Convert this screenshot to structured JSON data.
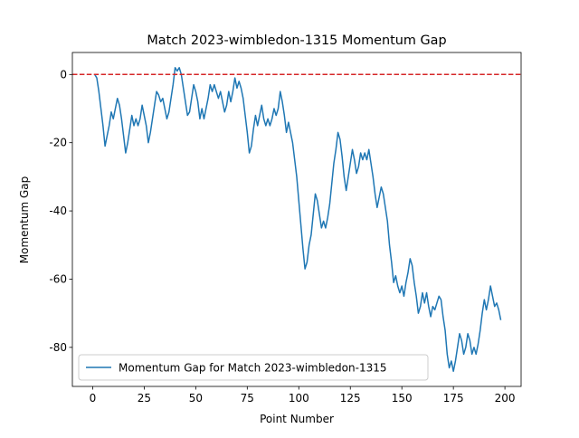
{
  "chart_data": {
    "type": "line",
    "title": "Match 2023-wimbledon-1315 Momentum Gap",
    "x_label": "Point Number",
    "y_label": "Momentum Gap",
    "x": [
      1,
      2,
      3,
      4,
      5,
      6,
      7,
      8,
      9,
      10,
      11,
      12,
      13,
      14,
      15,
      16,
      17,
      18,
      19,
      20,
      21,
      22,
      23,
      24,
      25,
      26,
      27,
      28,
      29,
      30,
      31,
      32,
      33,
      34,
      35,
      36,
      37,
      38,
      39,
      40,
      41,
      42,
      43,
      44,
      45,
      46,
      47,
      48,
      49,
      50,
      51,
      52,
      53,
      54,
      55,
      56,
      57,
      58,
      59,
      60,
      61,
      62,
      63,
      64,
      65,
      66,
      67,
      68,
      69,
      70,
      71,
      72,
      73,
      74,
      75,
      76,
      77,
      78,
      79,
      80,
      81,
      82,
      83,
      84,
      85,
      86,
      87,
      88,
      89,
      90,
      91,
      92,
      93,
      94,
      95,
      96,
      97,
      98,
      99,
      100,
      101,
      102,
      103,
      104,
      105,
      106,
      107,
      108,
      109,
      110,
      111,
      112,
      113,
      114,
      115,
      116,
      117,
      118,
      119,
      120,
      121,
      122,
      123,
      124,
      125,
      126,
      127,
      128,
      129,
      130,
      131,
      132,
      133,
      134,
      135,
      136,
      137,
      138,
      139,
      140,
      141,
      142,
      143,
      144,
      145,
      146,
      147,
      148,
      149,
      150,
      151,
      152,
      153,
      154,
      155,
      156,
      157,
      158,
      159,
      160,
      161,
      162,
      163,
      164,
      165,
      166,
      167,
      168,
      169,
      170,
      171,
      172,
      173,
      174,
      175,
      176,
      177,
      178,
      179,
      180,
      181,
      182,
      183,
      184,
      185,
      186,
      187,
      188,
      189,
      190,
      191,
      192,
      193,
      194,
      195,
      196,
      197,
      198
    ],
    "series": [
      {
        "name": "Momentum Gap for Match 2023-wimbledon-1315",
        "color": "#1f77b4",
        "values": [
          0,
          -1,
          -5,
          -10,
          -15,
          -21,
          -18,
          -15,
          -11,
          -13,
          -10,
          -7,
          -9,
          -13,
          -18,
          -23,
          -20,
          -16,
          -12,
          -15,
          -13,
          -15,
          -13,
          -9,
          -12,
          -15,
          -20,
          -17,
          -13,
          -9,
          -5,
          -6,
          -8,
          -7,
          -10,
          -13,
          -11,
          -7,
          -3,
          2,
          1,
          2,
          0,
          -4,
          -8,
          -12,
          -11,
          -7,
          -3,
          -5,
          -8,
          -13,
          -10,
          -13,
          -10,
          -7,
          -3,
          -5,
          -3,
          -5,
          -7,
          -5,
          -8,
          -11,
          -9,
          -5,
          -8,
          -5,
          -1,
          -4,
          -2,
          -4,
          -7,
          -12,
          -17,
          -23,
          -21,
          -16,
          -12,
          -15,
          -12,
          -9,
          -13,
          -15,
          -13,
          -15,
          -13,
          -10,
          -12,
          -10,
          -5,
          -8,
          -12,
          -17,
          -14,
          -17,
          -20,
          -25,
          -30,
          -37,
          -44,
          -51,
          -57,
          -55,
          -50,
          -47,
          -41,
          -35,
          -37,
          -41,
          -45,
          -43,
          -45,
          -42,
          -38,
          -32,
          -26,
          -22,
          -17,
          -19,
          -24,
          -30,
          -34,
          -30,
          -26,
          -22,
          -25,
          -29,
          -27,
          -23,
          -25,
          -23,
          -25,
          -22,
          -26,
          -30,
          -35,
          -39,
          -36,
          -33,
          -35,
          -39,
          -43,
          -50,
          -55,
          -61,
          -59,
          -62,
          -64,
          -62,
          -65,
          -61,
          -58,
          -54,
          -56,
          -61,
          -65,
          -70,
          -68,
          -64,
          -67,
          -64,
          -68,
          -71,
          -68,
          -69,
          -67,
          -65,
          -66,
          -71,
          -75,
          -82,
          -86,
          -84,
          -87,
          -84,
          -80,
          -76,
          -78,
          -82,
          -80,
          -76,
          -78,
          -82,
          -80,
          -82,
          -79,
          -75,
          -70,
          -66,
          -69,
          -66,
          -62,
          -65,
          -68,
          -67,
          -69,
          -72
        ]
      }
    ],
    "hline": {
      "value": 0,
      "color": "#d62728",
      "style": "dashed"
    },
    "xlim": [
      -9.85,
      207.85
    ],
    "ylim": [
      -91.45,
      6.45
    ],
    "xticks": [
      0,
      25,
      50,
      75,
      100,
      125,
      150,
      175,
      200
    ],
    "yticks": [
      -80,
      -60,
      -40,
      -20,
      0
    ],
    "legend": "lower left",
    "grid": false
  }
}
